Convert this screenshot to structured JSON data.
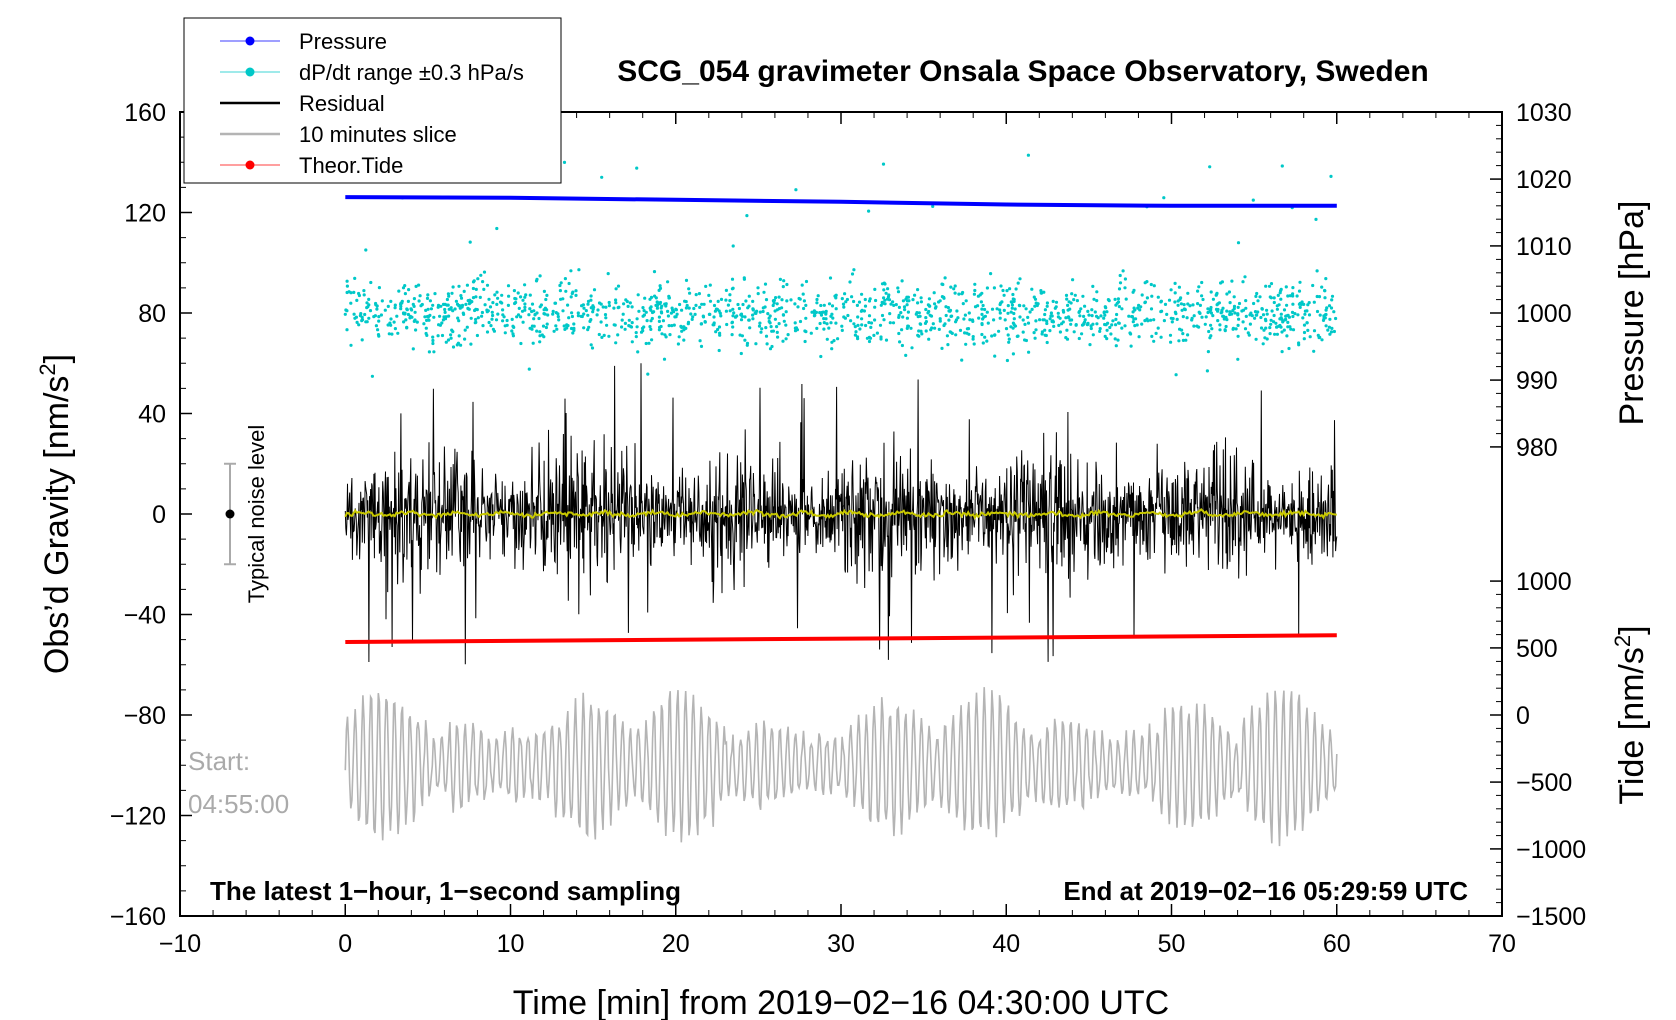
{
  "chart_data": {
    "type": "line",
    "title": "SCG_054 gravimeter Onsala Space Observatory, Sweden",
    "xlabel": "Time [min] from 2019−02−16 04:30:00 UTC",
    "ylabel_left": "Obs’d Gravity [nm/s",
    "ylabel_left_sup": "2",
    "ylabel_left_tail": "]",
    "ylabel_right_pressure": "Pressure [hPa]",
    "ylabel_right_tide": "Tide [nm/s",
    "ylabel_right_tide_sup": "2",
    "ylabel_right_tide_tail": "]",
    "xlim": [
      -10,
      70
    ],
    "ylim_left": [
      -160,
      160
    ],
    "x_ticks": [
      -10,
      0,
      10,
      20,
      30,
      40,
      50,
      60,
      70
    ],
    "x_tick_labels": [
      "−10",
      "0",
      "10",
      "20",
      "30",
      "40",
      "50",
      "60",
      "70"
    ],
    "y_ticks_left": [
      160,
      120,
      80,
      40,
      0,
      -40,
      -80,
      -120,
      -160
    ],
    "y_tick_labels_left": [
      "160",
      "120",
      "80",
      "40",
      "0",
      "−40",
      "−80",
      "−120",
      "−160"
    ],
    "pressure_axis": {
      "ticks": [
        1030,
        1020,
        1010,
        1000,
        990,
        980
      ],
      "tick_labels": [
        "1030",
        "1020",
        "1010",
        "1000",
        "990",
        "980"
      ],
      "gravity_equiv": [
        160,
        133.3,
        106.7,
        80,
        53.3,
        26.7
      ]
    },
    "tide_axis": {
      "ticks": [
        1000,
        500,
        0,
        -500,
        -1000,
        -1500
      ],
      "tick_labels": [
        "1000",
        "500",
        "0",
        "−500",
        "−1000",
        "−1500"
      ],
      "gravity_equiv": [
        -26.7,
        -53.3,
        -80,
        -106.7,
        -133.3,
        -160
      ]
    },
    "series": [
      {
        "name": "Pressure",
        "color": "#0000ff",
        "type": "line",
        "x": [
          0,
          10,
          20,
          30,
          40,
          50,
          60
        ],
        "y_hpa": [
          1017.3,
          1017.2,
          1016.9,
          1016.6,
          1016.2,
          1016.0,
          1016.0
        ]
      },
      {
        "name": "dP/dt range ±0.3 hPa/s",
        "color": "#00c8c8",
        "type": "scatter",
        "x_range": [
          0,
          60
        ],
        "center": 80,
        "spread": 12
      },
      {
        "name": "Residual",
        "color": "#000000",
        "type": "line",
        "x_range": [
          0,
          60
        ],
        "center": 0,
        "amplitude": 25,
        "spike_range": [
          -65,
          65
        ]
      },
      {
        "name": "10 minutes slice",
        "color": "#b4b4b4",
        "type": "line",
        "x_range": [
          0,
          60
        ],
        "center": -100,
        "amplitude": 30
      },
      {
        "name": "Theor.Tide",
        "color": "#ff0000",
        "type": "line",
        "x": [
          0,
          60
        ],
        "y_nms2": [
          545,
          595
        ]
      },
      {
        "name": "Smoothed residual",
        "color": "#c8c800",
        "type": "line",
        "x_range": [
          0,
          60
        ],
        "center": 0
      }
    ],
    "legend": [
      "Pressure",
      "dP/dt range ±0.3 hPa/s",
      "Residual",
      "10 minutes slice",
      "Theor.Tide"
    ],
    "legend_position": "top-left",
    "annotations": {
      "noise_label": "Typical noise level",
      "noise_center": 0,
      "noise_halfwidth": 20,
      "start_label": "Start:",
      "start_time": "04:55:00",
      "bottom_left": "The latest 1−hour, 1−second sampling",
      "bottom_right": "End at 2019−02−16 05:29:59 UTC"
    }
  }
}
